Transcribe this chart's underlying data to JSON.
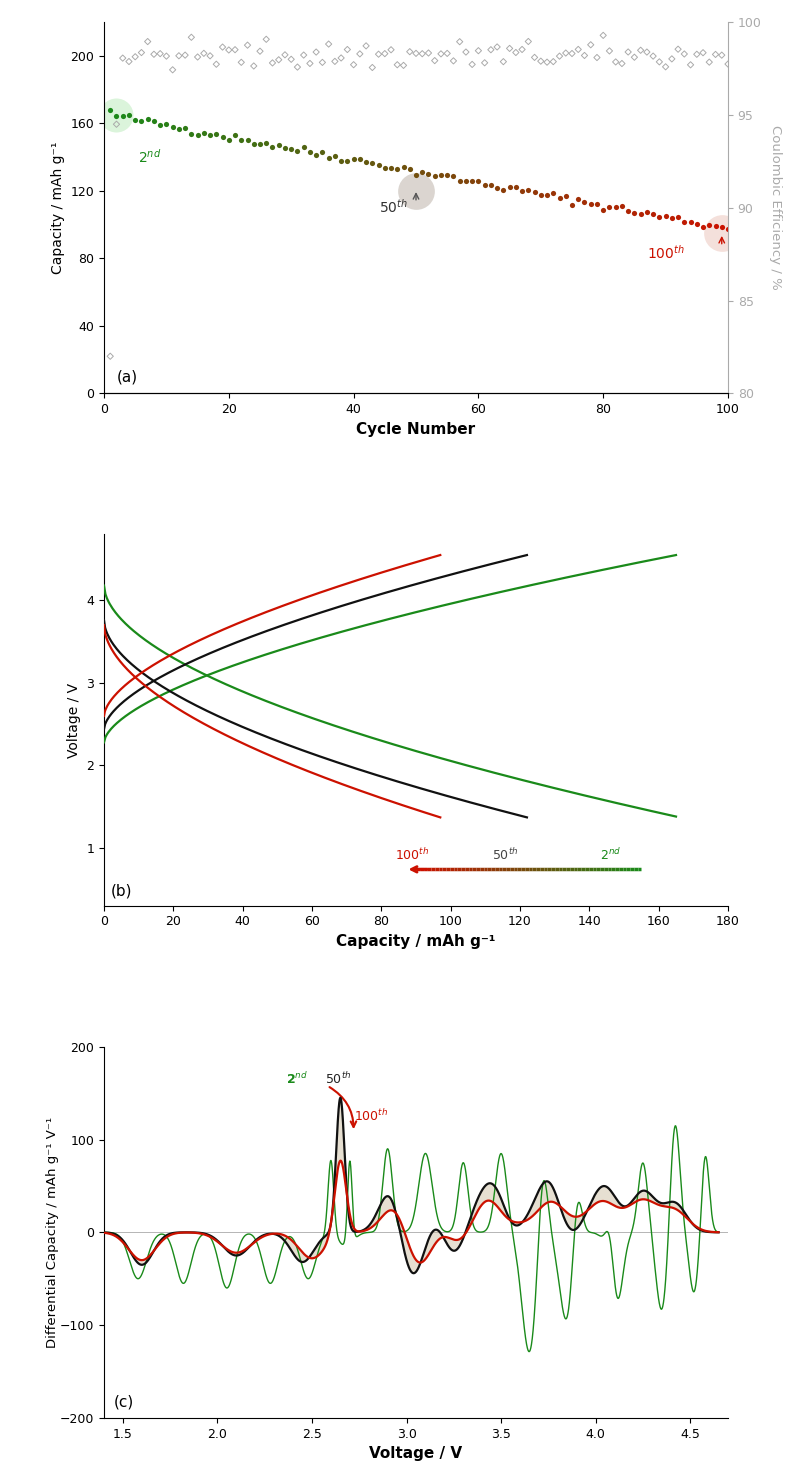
{
  "panel_a": {
    "xlabel": "Cycle Number",
    "ylabel": "Capacity / mAh g⁻¹",
    "ylabel2": "Coulombic Efficiency / %",
    "xlim": [
      0,
      100
    ],
    "ylim": [
      0,
      220
    ],
    "ylim2": [
      80,
      100
    ]
  },
  "panel_b": {
    "xlabel": "Capacity / mAh g⁻¹",
    "ylabel": "Voltage / V",
    "xlim": [
      0,
      180
    ],
    "ylim": [
      0.3,
      4.8
    ]
  },
  "panel_c": {
    "xlabel": "Voltage / V",
    "ylabel": "Differential Capacity / mAh g⁻¹ V⁻¹",
    "xlim": [
      1.4,
      4.7
    ],
    "ylim": [
      -200,
      200
    ],
    "fill_color": "#c8b89a",
    "fill_alpha": 0.45
  },
  "colors": {
    "green": "#1a8a1a",
    "black": "#111111",
    "red": "#cc1100",
    "gray": "#aaaaaa"
  }
}
